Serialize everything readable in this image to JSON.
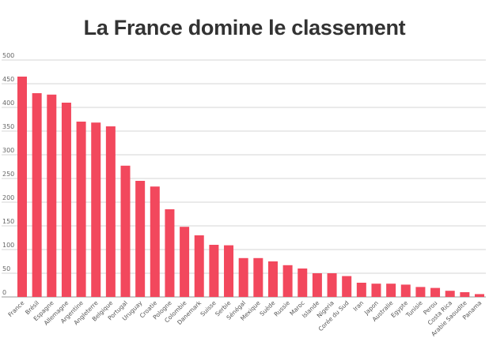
{
  "chart_data": {
    "type": "bar",
    "title": "La France domine le classement",
    "xlabel": "",
    "ylabel": "",
    "ylim": [
      0,
      500
    ],
    "yticks": [
      0,
      50,
      100,
      150,
      200,
      250,
      300,
      350,
      400,
      450,
      500
    ],
    "grid": true,
    "legend": "none",
    "bar_color": "#f2485d",
    "categories": [
      "France",
      "Brésil",
      "Espagne",
      "Allemagne",
      "Argentine",
      "Angleterre",
      "Belgique",
      "Portugal",
      "Uruguay",
      "Croatie",
      "Pologne",
      "Colombie",
      "Danemark",
      "Suisse",
      "Serbie",
      "Sénégal",
      "Mexique",
      "Suède",
      "Russie",
      "Maroc",
      "Islande",
      "Nigeria",
      "Corée du Sud",
      "Iran",
      "Japon",
      "Australie",
      "Egypte",
      "Tunisie",
      "Perou",
      "Costa Rica",
      "Arabie Saoudite",
      "Panama"
    ],
    "values": [
      465,
      430,
      427,
      410,
      370,
      368,
      360,
      277,
      245,
      233,
      185,
      148,
      130,
      110,
      109,
      82,
      82,
      75,
      67,
      60,
      50,
      50,
      44,
      30,
      28,
      28,
      26,
      21,
      19,
      13,
      10,
      6
    ]
  }
}
